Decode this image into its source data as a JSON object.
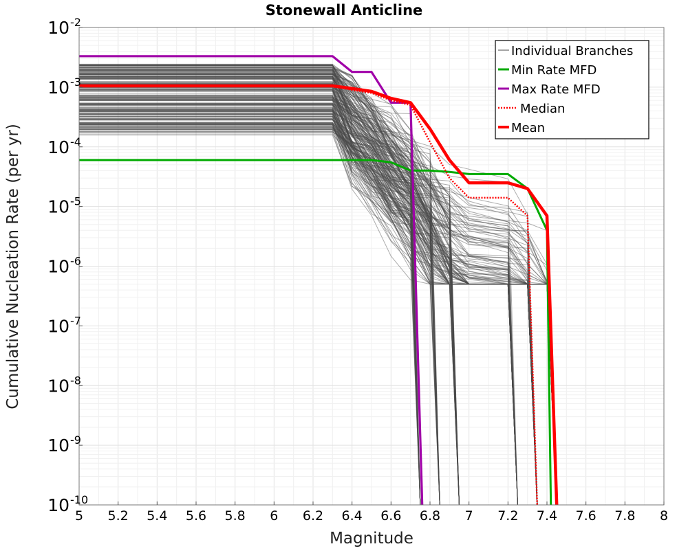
{
  "chart_data": {
    "type": "line",
    "title": "Stonewall Anticline",
    "xlabel": "Magnitude",
    "ylabel": "Cumulative Nucleation Rate (per yr)",
    "xlim": [
      5,
      8
    ],
    "ylim": [
      1e-10,
      0.01
    ],
    "yscale": "log",
    "grid": true,
    "legend_position": "top-right",
    "x_ticks": [
      "5",
      "5.2",
      "5.4",
      "5.6",
      "5.8",
      "6",
      "6.2",
      "6.4",
      "6.6",
      "6.8",
      "7",
      "7.2",
      "7.4",
      "7.6",
      "7.8",
      "8"
    ],
    "y_ticks": [
      {
        "base": "10",
        "exp": "-10",
        "value": 1e-10
      },
      {
        "base": "10",
        "exp": "-9",
        "value": 1e-09
      },
      {
        "base": "10",
        "exp": "-8",
        "value": 1e-08
      },
      {
        "base": "10",
        "exp": "-7",
        "value": 1e-07
      },
      {
        "base": "10",
        "exp": "-6",
        "value": 1e-06
      },
      {
        "base": "10",
        "exp": "-5",
        "value": 1e-05
      },
      {
        "base": "10",
        "exp": "-4",
        "value": 0.0001
      },
      {
        "base": "10",
        "exp": "-3",
        "value": 0.001
      },
      {
        "base": "10",
        "exp": "-2",
        "value": 0.01
      }
    ],
    "individual_branches": {
      "name": "Individual Branches",
      "color": "#4a4a4a",
      "count_drawn": 220,
      "plateau_range": [
        0.00015,
        0.0025
      ],
      "cutoff_magnitudes": [
        6.75,
        6.85,
        6.95,
        7.25,
        7.35,
        7.45
      ]
    },
    "series": [
      {
        "name": "Min Rate MFD",
        "color": "#00aa00",
        "style": "solid",
        "points": [
          [
            5,
            6e-05
          ],
          [
            6.3,
            6e-05
          ],
          [
            6.5,
            6e-05
          ],
          [
            6.6,
            5.5e-05
          ],
          [
            6.7,
            4e-05
          ],
          [
            6.8,
            4e-05
          ],
          [
            6.9,
            3.8e-05
          ],
          [
            7.0,
            3.5e-05
          ],
          [
            7.2,
            3.5e-05
          ],
          [
            7.3,
            2e-05
          ],
          [
            7.4,
            4e-06
          ],
          [
            7.42,
            1e-10
          ]
        ]
      },
      {
        "name": "Max Rate MFD",
        "color": "#a000a8",
        "style": "solid",
        "points": [
          [
            5,
            0.0033
          ],
          [
            6.3,
            0.0033
          ],
          [
            6.4,
            0.0018
          ],
          [
            6.5,
            0.0018
          ],
          [
            6.6,
            0.00055
          ],
          [
            6.7,
            0.00055
          ],
          [
            6.76,
            1e-10
          ]
        ]
      },
      {
        "name": "Median",
        "color": "#ff0000",
        "style": "dotted",
        "points": [
          [
            5,
            0.00105
          ],
          [
            6.3,
            0.00105
          ],
          [
            6.4,
            0.0009
          ],
          [
            6.5,
            0.0008
          ],
          [
            6.6,
            0.0006
          ],
          [
            6.7,
            0.0005
          ],
          [
            6.8,
            0.00012
          ],
          [
            6.9,
            3e-05
          ],
          [
            7.0,
            1.4e-05
          ],
          [
            7.2,
            1.4e-05
          ],
          [
            7.3,
            7e-06
          ],
          [
            7.35,
            1e-10
          ]
        ]
      },
      {
        "name": "Mean",
        "color": "#ff0000",
        "style": "solid",
        "points": [
          [
            5,
            0.00105
          ],
          [
            6.3,
            0.00105
          ],
          [
            6.4,
            0.00095
          ],
          [
            6.5,
            0.00085
          ],
          [
            6.6,
            0.00065
          ],
          [
            6.7,
            0.00055
          ],
          [
            6.8,
            0.0002
          ],
          [
            6.9,
            6e-05
          ],
          [
            7.0,
            2.5e-05
          ],
          [
            7.2,
            2.5e-05
          ],
          [
            7.3,
            2e-05
          ],
          [
            7.4,
            7e-06
          ],
          [
            7.45,
            1e-10
          ]
        ]
      }
    ]
  }
}
